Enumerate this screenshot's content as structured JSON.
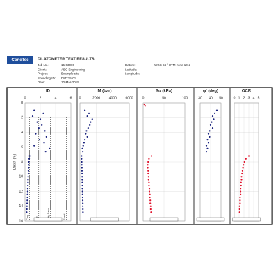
{
  "header": {
    "logo": "ConeTec",
    "title": "DILATOMETER TEST RESULTS",
    "fields": [
      {
        "label": "Job No.:",
        "value": "15-03000"
      },
      {
        "label": "Client:",
        "value": "ABC Engineering"
      },
      {
        "label": "Project:",
        "value": "Example site"
      },
      {
        "label": "Sounding ID:",
        "value": "DMT15-01"
      },
      {
        "label": "Date:",
        "value": "10-Mar-2015"
      }
    ],
    "fields_right": [
      {
        "label": "Datum:",
        "value": "WGS 84 / UTM zone 10N"
      },
      {
        "label": "Latitude:"
      },
      {
        "label": "Longitude:"
      }
    ]
  },
  "chart_data": [
    {
      "type": "scatter",
      "title": "ID",
      "ylabel": "Depth (m)",
      "color": "#1a237e",
      "xlim": [
        0,
        6
      ],
      "xticks": [
        0,
        2,
        4,
        6
      ],
      "ylim": [
        0,
        16
      ],
      "yticks": [
        0,
        2,
        4,
        6,
        8,
        10,
        12,
        14,
        16
      ],
      "zones": [
        {
          "value": 0.6,
          "label": "Clay"
        },
        {
          "value": 1.8,
          "label": "Silt"
        },
        {
          "value": 3.3,
          "label": "Silty Sand"
        },
        {
          "value": 5.4,
          "label": "Sand"
        }
      ],
      "x": [
        1.2,
        2.4,
        1.0,
        2.0,
        1.6,
        2.2,
        1.8,
        2.6,
        1.4,
        2.8,
        1.9,
        2.5,
        1.2,
        3.2,
        2.7,
        0.6,
        0.55,
        0.5,
        0.5,
        0.48,
        0.45,
        0.45,
        0.42,
        0.4,
        0.4,
        0.38,
        0.36,
        0.35,
        0.33,
        0.32,
        0.3,
        0.28,
        0.26,
        0.25,
        0.22
      ],
      "y": [
        1.0,
        1.4,
        1.8,
        2.2,
        2.6,
        3.0,
        3.4,
        3.8,
        4.2,
        4.6,
        5.0,
        5.4,
        5.8,
        6.2,
        6.6,
        7.2,
        7.6,
        8.0,
        8.4,
        8.8,
        9.2,
        9.6,
        10.0,
        10.4,
        10.8,
        11.2,
        11.6,
        12.0,
        12.4,
        12.8,
        13.2,
        13.6,
        14.0,
        14.4,
        14.8
      ]
    },
    {
      "type": "scatter",
      "title": "M (bar)",
      "color": "#1a237e",
      "xlim": [
        0,
        6000
      ],
      "xticks": [
        0,
        2000,
        4000,
        6000
      ],
      "ylim": [
        0,
        16
      ],
      "yticks": [
        0,
        2,
        4,
        6,
        8,
        10,
        12,
        14,
        16
      ],
      "x": [
        600,
        1100,
        900,
        1500,
        1300,
        1200,
        1000,
        800,
        700,
        900,
        600,
        500,
        400,
        300,
        350,
        200,
        200,
        220,
        230,
        240,
        250,
        260,
        270,
        280,
        290,
        300,
        300,
        310,
        320,
        330,
        340,
        350,
        350,
        360,
        370
      ],
      "y": [
        1.0,
        1.4,
        1.8,
        2.2,
        2.6,
        3.0,
        3.4,
        3.8,
        4.2,
        4.6,
        5.0,
        5.4,
        5.8,
        6.2,
        6.6,
        7.2,
        7.6,
        8.0,
        8.4,
        8.8,
        9.2,
        9.6,
        10.0,
        10.4,
        10.8,
        11.2,
        11.6,
        12.0,
        12.4,
        12.8,
        13.2,
        13.6,
        14.0,
        14.4,
        14.8
      ]
    },
    {
      "type": "scatter",
      "title": "Su (kPa)",
      "color": "#e0122b",
      "xlim": [
        0,
        100
      ],
      "xticks": [
        0,
        50,
        100
      ],
      "ylim": [
        0,
        16
      ],
      "yticks": [
        0,
        2,
        4,
        6,
        8,
        10,
        12,
        14,
        16
      ],
      "x": [
        3,
        5,
        20,
        14,
        12,
        11,
        11,
        12,
        12,
        13,
        13,
        14,
        14,
        15,
        15,
        16,
        16,
        17,
        17,
        18,
        18,
        19
      ],
      "y": [
        0.2,
        0.4,
        7.2,
        7.6,
        8.0,
        8.4,
        8.8,
        9.2,
        9.6,
        10.0,
        10.4,
        10.8,
        11.2,
        11.6,
        12.0,
        12.4,
        12.8,
        13.2,
        13.6,
        14.0,
        14.4,
        14.8
      ]
    },
    {
      "type": "scatter",
      "title": "φ' (deg)",
      "color": "#1a237e",
      "xlim": [
        30,
        50
      ],
      "xticks": [
        30,
        40,
        50
      ],
      "ylim": [
        0,
        16
      ],
      "yticks": [
        0,
        2,
        4,
        6,
        8,
        10,
        12,
        14,
        16
      ],
      "x": [
        46,
        44,
        42,
        43,
        41,
        40,
        42,
        39,
        38,
        39,
        37,
        38,
        36,
        37,
        36
      ],
      "y": [
        1.0,
        1.4,
        1.8,
        2.2,
        2.6,
        3.0,
        3.4,
        3.8,
        4.2,
        4.6,
        5.0,
        5.4,
        5.8,
        6.2,
        6.6
      ]
    },
    {
      "type": "scatter",
      "title": "OCR",
      "color": "#e0122b",
      "xlim": [
        0,
        5
      ],
      "xticks": [
        0,
        1,
        2,
        3,
        4,
        5
      ],
      "ylim": [
        0,
        16
      ],
      "yticks": [
        0,
        2,
        4,
        6,
        8,
        10,
        12,
        14,
        16
      ],
      "x": [
        3.0,
        2.4,
        2.1,
        1.9,
        1.8,
        1.7,
        1.6,
        1.5,
        1.5,
        1.4,
        1.4,
        1.3,
        1.3,
        1.3,
        1.2,
        1.2,
        1.2,
        1.1,
        1.1,
        1.1
      ],
      "y": [
        7.2,
        7.6,
        8.0,
        8.4,
        8.8,
        9.2,
        9.6,
        10.0,
        10.4,
        10.8,
        11.2,
        11.6,
        12.0,
        12.4,
        12.8,
        13.2,
        13.6,
        14.0,
        14.4,
        14.8
      ]
    }
  ]
}
